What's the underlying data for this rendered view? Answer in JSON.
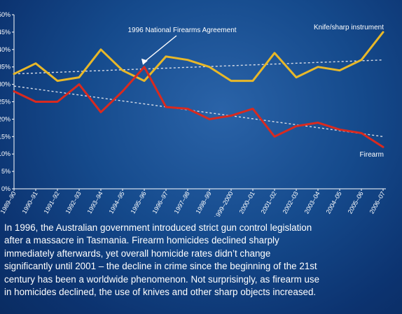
{
  "chart_data": {
    "type": "line",
    "x": [
      "1989–90",
      "1990–91",
      "1991–92",
      "1992–93",
      "1993–94",
      "1994–95",
      "1995–96",
      "1996–97",
      "1997–98",
      "1998–99",
      "1999–2000",
      "2000–01",
      "2001–02",
      "2002–03",
      "2003–04",
      "2004–05",
      "2005–06",
      "2006–07"
    ],
    "series": [
      {
        "name": "Knife/sharp instrument",
        "color": "#e8b829",
        "values": [
          33,
          36,
          31,
          32,
          40,
          34,
          31,
          38,
          37,
          35,
          31,
          31,
          39,
          32,
          35,
          34,
          37,
          45
        ],
        "trend": [
          33,
          37
        ]
      },
      {
        "name": "Firearm",
        "color": "#d92a1f",
        "values": [
          28,
          25,
          25,
          30,
          22,
          28,
          35,
          23.5,
          23,
          20,
          21,
          23,
          15,
          18,
          19,
          17,
          16,
          12
        ],
        "trend": [
          29.5,
          15
        ]
      }
    ],
    "yticks": [
      "0%",
      "5%",
      "10%",
      "15%",
      "20%",
      "25%",
      "30%",
      "35%",
      "40%",
      "45%",
      "50%"
    ],
    "ylim": [
      0,
      50
    ],
    "annotation": "1996 National Firearms Agreement",
    "trend_color": "#d6dbe6"
  },
  "caption_lines": [
    "In 1996, the Australian government introduced strict gun control legislation",
    "after a massacre in Tasmania. Firearm homicides declined sharply",
    "immediately afterwards, yet overall homicide rates didn’t change",
    "significantly until 2001 – the decline in crime since the beginning of the 21st",
    "century has been a worldwide phenomenon. Not surprisingly, as firearm use",
    "in homicides declined, the use of knives and other sharp objects increased."
  ]
}
